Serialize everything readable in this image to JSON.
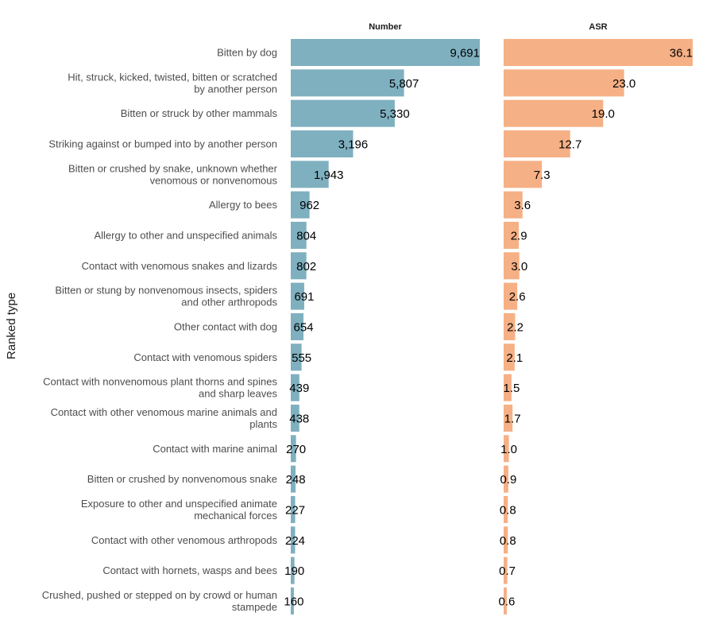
{
  "chart_data": {
    "type": "bar",
    "orientation": "horizontal",
    "ylabel": "Ranked type",
    "categories": [
      [
        "Bitten by dog"
      ],
      [
        "Hit, struck, kicked, twisted, bitten or scratched",
        "by another person"
      ],
      [
        "Bitten or struck by other mammals"
      ],
      [
        "Striking against or bumped into by another person"
      ],
      [
        "Bitten or crushed by snake, unknown whether",
        "venomous or nonvenomous"
      ],
      [
        "Allergy to bees"
      ],
      [
        "Allergy to other and unspecified animals"
      ],
      [
        "Contact with venomous snakes and lizards"
      ],
      [
        "Bitten or stung by nonvenomous insects, spiders",
        "and other arthropods"
      ],
      [
        "Other contact with dog"
      ],
      [
        "Contact with venomous spiders"
      ],
      [
        "Contact with nonvenomous plant thorns and spines",
        "and sharp leaves"
      ],
      [
        "Contact with other venomous marine animals and",
        "plants"
      ],
      [
        "Contact with marine animal"
      ],
      [
        "Bitten or crushed by nonvenomous snake"
      ],
      [
        "Exposure to other and unspecified animate",
        "mechanical forces"
      ],
      [
        "Contact with other venomous arthropods"
      ],
      [
        "Contact with hornets, wasps and bees"
      ],
      [
        "Crushed, pushed or stepped on by crowd or human",
        "stampede"
      ]
    ],
    "series": [
      {
        "name": "Number",
        "color": "#7fb0c0",
        "values": [
          9691,
          5807,
          5330,
          3196,
          1943,
          962,
          804,
          802,
          691,
          654,
          555,
          439,
          438,
          270,
          248,
          227,
          224,
          190,
          160
        ],
        "labels": [
          "9,691",
          "5,807",
          "5,330",
          "3,196",
          "1,943",
          "962",
          "804",
          "802",
          "691",
          "654",
          "555",
          "439",
          "438",
          "270",
          "248",
          "227",
          "224",
          "190",
          "160"
        ],
        "xlim": [
          0,
          9691
        ]
      },
      {
        "name": "ASR",
        "color": "#f6b085",
        "values": [
          36.1,
          23.0,
          19.0,
          12.7,
          7.3,
          3.6,
          2.9,
          3.0,
          2.6,
          2.2,
          2.1,
          1.5,
          1.7,
          1.0,
          0.9,
          0.8,
          0.8,
          0.7,
          0.6
        ],
        "labels": [
          "36.1",
          "23.0",
          "19.0",
          "12.7",
          "7.3",
          "3.6",
          "2.9",
          "3.0",
          "2.6",
          "2.2",
          "2.1",
          "1.5",
          "1.7",
          "1.0",
          "0.9",
          "0.8",
          "0.8",
          "0.7",
          "0.6"
        ],
        "xlim": [
          0,
          36.1
        ]
      }
    ],
    "grid": false,
    "legend": "none"
  }
}
